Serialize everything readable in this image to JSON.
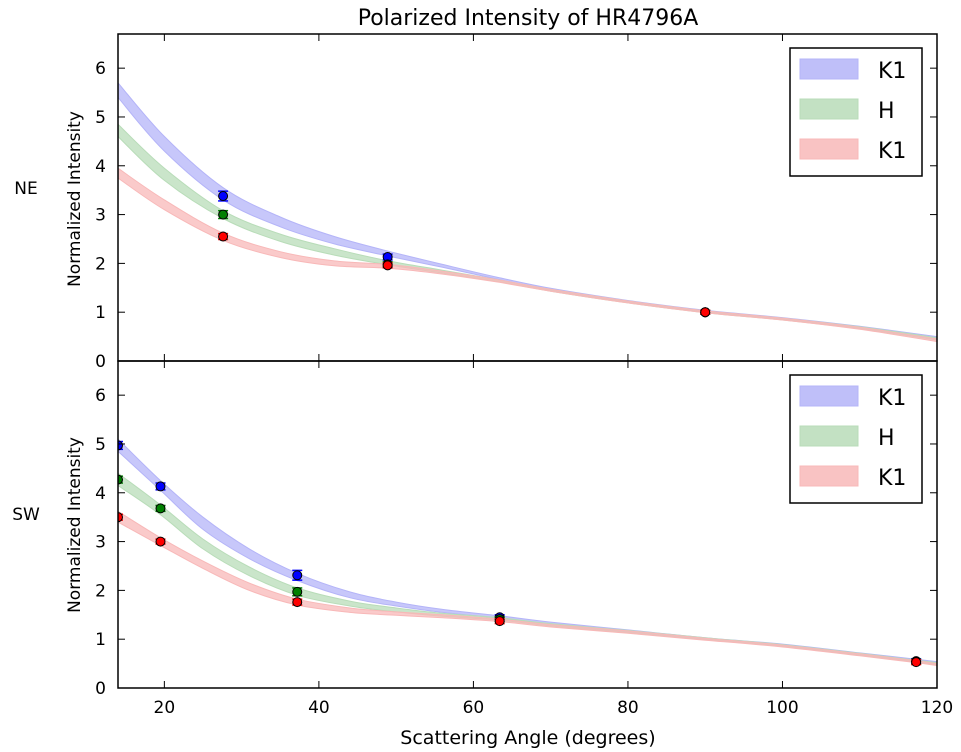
{
  "chart_data": [
    {
      "type": "line",
      "title": "Polarized Intensity of HR4796A",
      "row_label": "NE",
      "xlabel": "",
      "ylabel": "Normalized Intensity",
      "xlim": [
        14,
        120
      ],
      "ylim": [
        0,
        6.7
      ],
      "yticks": [
        0,
        1,
        2,
        3,
        4,
        5,
        6
      ],
      "xticks_labeled": false,
      "grid": false,
      "legend_position": "top-right",
      "legend": [
        "K1",
        "H",
        "K1"
      ],
      "series": [
        {
          "name": "K1",
          "color": "#0000ff",
          "band_color": "#b4b4f8",
          "band_x": [
            14,
            20,
            27.6,
            35,
            42,
            49,
            56,
            63,
            70,
            80,
            90,
            100,
            110,
            120
          ],
          "band_low": [
            5.4,
            4.3,
            3.3,
            2.75,
            2.4,
            2.15,
            1.92,
            1.68,
            1.45,
            1.2,
            1.0,
            0.85,
            0.67,
            0.45
          ],
          "band_high": [
            5.7,
            4.6,
            3.55,
            2.95,
            2.55,
            2.25,
            1.98,
            1.72,
            1.49,
            1.24,
            1.04,
            0.89,
            0.71,
            0.5
          ],
          "points": [
            {
              "x": 27.6,
              "y": 3.38,
              "err": 0.1
            },
            {
              "x": 48.9,
              "y": 2.13,
              "err": 0.06
            },
            {
              "x": 90,
              "y": 1.0,
              "err": 0.04
            }
          ]
        },
        {
          "name": "H",
          "color": "#008000",
          "band_color": "#b8dcb8",
          "band_x": [
            14,
            20,
            27.6,
            35,
            42,
            49,
            56,
            63,
            70,
            80,
            90,
            100,
            110,
            120
          ],
          "band_low": [
            4.6,
            3.7,
            2.92,
            2.45,
            2.17,
            1.97,
            1.8,
            1.63,
            1.43,
            1.19,
            0.99,
            0.84,
            0.66,
            0.43
          ],
          "band_high": [
            4.85,
            3.95,
            3.08,
            2.6,
            2.3,
            2.05,
            1.86,
            1.67,
            1.47,
            1.23,
            1.03,
            0.88,
            0.7,
            0.48
          ],
          "points": [
            {
              "x": 27.6,
              "y": 3.0,
              "err": 0.08
            },
            {
              "x": 48.9,
              "y": 1.98,
              "err": 0.05
            },
            {
              "x": 90,
              "y": 1.0,
              "err": 0.04
            }
          ]
        },
        {
          "name": "K1",
          "color": "#ff0000",
          "band_color": "#f8b8b8",
          "band_x": [
            14,
            20,
            27.6,
            35,
            42,
            49,
            56,
            63,
            70,
            80,
            90,
            100,
            110,
            120
          ],
          "band_low": [
            3.75,
            3.1,
            2.47,
            2.12,
            1.95,
            1.9,
            1.78,
            1.62,
            1.43,
            1.19,
            0.99,
            0.84,
            0.65,
            0.4
          ],
          "band_high": [
            3.95,
            3.3,
            2.62,
            2.24,
            2.05,
            1.98,
            1.84,
            1.67,
            1.47,
            1.23,
            1.03,
            0.88,
            0.69,
            0.45
          ],
          "points": [
            {
              "x": 27.6,
              "y": 2.55,
              "err": 0.06
            },
            {
              "x": 48.9,
              "y": 1.96,
              "err": 0.05
            },
            {
              "x": 90,
              "y": 1.0,
              "err": 0.04
            }
          ]
        }
      ]
    },
    {
      "type": "line",
      "title": "",
      "row_label": "SW",
      "xlabel": "Scattering Angle (degrees)",
      "ylabel": "Normalized Intensity",
      "xlim": [
        14,
        120
      ],
      "ylim": [
        0,
        6.7
      ],
      "xticks": [
        20,
        40,
        60,
        80,
        100,
        120
      ],
      "yticks": [
        0,
        1,
        2,
        3,
        4,
        5,
        6
      ],
      "grid": false,
      "legend_position": "top-right",
      "legend": [
        "K1",
        "H",
        "K1"
      ],
      "series": [
        {
          "name": "K1",
          "color": "#0000ff",
          "band_color": "#b4b4f8",
          "band_x": [
            14,
            19.5,
            25,
            31,
            37.2,
            44,
            50,
            56,
            63.4,
            70,
            80,
            90,
            100,
            110,
            117.3,
            120
          ],
          "band_low": [
            4.85,
            4.05,
            3.25,
            2.65,
            2.2,
            1.85,
            1.68,
            1.55,
            1.43,
            1.3,
            1.15,
            0.99,
            0.86,
            0.68,
            0.55,
            0.5
          ],
          "band_high": [
            5.1,
            4.25,
            3.5,
            2.85,
            2.35,
            1.97,
            1.76,
            1.61,
            1.48,
            1.35,
            1.19,
            1.03,
            0.9,
            0.72,
            0.59,
            0.54
          ],
          "points": [
            {
              "x": 14,
              "y": 4.97,
              "err": 0.08
            },
            {
              "x": 19.5,
              "y": 4.13,
              "err": 0.07
            },
            {
              "x": 37.2,
              "y": 2.31,
              "err": 0.1
            },
            {
              "x": 63.4,
              "y": 1.45,
              "err": 0.05
            },
            {
              "x": 117.3,
              "y": 0.55,
              "err": 0.05
            }
          ]
        },
        {
          "name": "H",
          "color": "#008000",
          "band_color": "#b8dcb8",
          "band_x": [
            14,
            19.5,
            25,
            31,
            37.2,
            44,
            50,
            56,
            63.4,
            70,
            80,
            90,
            100,
            110,
            117.3,
            120
          ],
          "band_low": [
            4.15,
            3.55,
            2.85,
            2.3,
            1.9,
            1.68,
            1.56,
            1.47,
            1.39,
            1.27,
            1.13,
            0.99,
            0.85,
            0.67,
            0.53,
            0.48
          ],
          "band_high": [
            4.4,
            3.75,
            3.05,
            2.48,
            2.05,
            1.78,
            1.64,
            1.53,
            1.44,
            1.32,
            1.18,
            1.03,
            0.89,
            0.71,
            0.57,
            0.52
          ],
          "points": [
            {
              "x": 14,
              "y": 4.27,
              "err": 0.07
            },
            {
              "x": 19.5,
              "y": 3.68,
              "err": 0.06
            },
            {
              "x": 37.2,
              "y": 1.97,
              "err": 0.08
            },
            {
              "x": 63.4,
              "y": 1.41,
              "err": 0.05
            },
            {
              "x": 117.3,
              "y": 0.54,
              "err": 0.05
            }
          ]
        },
        {
          "name": "K1",
          "color": "#ff0000",
          "band_color": "#f8b8b8",
          "band_x": [
            14,
            19.5,
            25,
            31,
            37.2,
            44,
            50,
            56,
            63.4,
            70,
            80,
            90,
            100,
            110,
            117.3,
            120
          ],
          "band_low": [
            3.4,
            2.92,
            2.45,
            2.0,
            1.7,
            1.55,
            1.49,
            1.44,
            1.36,
            1.25,
            1.12,
            0.98,
            0.84,
            0.66,
            0.52,
            0.46
          ],
          "band_high": [
            3.62,
            3.08,
            2.6,
            2.15,
            1.82,
            1.64,
            1.56,
            1.5,
            1.41,
            1.3,
            1.17,
            1.02,
            0.88,
            0.7,
            0.56,
            0.5
          ],
          "points": [
            {
              "x": 14,
              "y": 3.5,
              "err": 0.06
            },
            {
              "x": 19.5,
              "y": 3.0,
              "err": 0.05
            },
            {
              "x": 37.2,
              "y": 1.76,
              "err": 0.06
            },
            {
              "x": 63.4,
              "y": 1.37,
              "err": 0.05
            },
            {
              "x": 117.3,
              "y": 0.53,
              "err": 0.05
            }
          ]
        }
      ]
    }
  ]
}
